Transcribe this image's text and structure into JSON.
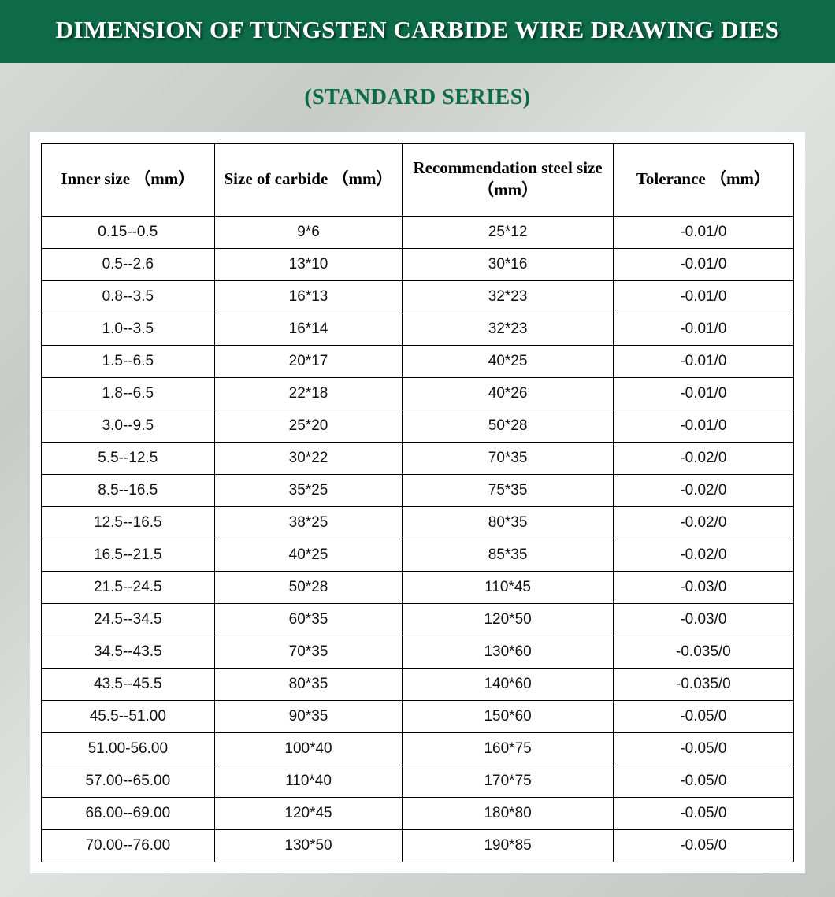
{
  "header": {
    "title": "DIMENSION OF TUNGSTEN CARBIDE WIRE DRAWING DIES",
    "subtitle": "(STANDARD SERIES)",
    "bar_color": "#0d6b49",
    "title_color": "#ffffff",
    "subtitle_color": "#0d6b49",
    "title_fontsize": 31,
    "subtitle_fontsize": 28
  },
  "table": {
    "type": "table",
    "background_color": "#ffffff",
    "border_color": "#000000",
    "header_font": "Georgia serif",
    "header_fontsize": 21,
    "header_fontweight": "bold",
    "body_font": "Arial sans-serif",
    "body_fontsize": 19,
    "column_widths_pct": [
      23,
      25,
      28,
      24
    ],
    "columns": [
      "Inner size （mm）",
      "Size of carbide （mm）",
      "Recommendation steel size （mm）",
      "Tolerance （mm）"
    ],
    "rows": [
      [
        "0.15--0.5",
        "9*6",
        "25*12",
        "-0.01/0"
      ],
      [
        "0.5--2.6",
        "13*10",
        "30*16",
        "-0.01/0"
      ],
      [
        "0.8--3.5",
        "16*13",
        "32*23",
        "-0.01/0"
      ],
      [
        "1.0--3.5",
        "16*14",
        "32*23",
        "-0.01/0"
      ],
      [
        "1.5--6.5",
        "20*17",
        "40*25",
        "-0.01/0"
      ],
      [
        "1.8--6.5",
        "22*18",
        "40*26",
        "-0.01/0"
      ],
      [
        "3.0--9.5",
        "25*20",
        "50*28",
        "-0.01/0"
      ],
      [
        "5.5--12.5",
        "30*22",
        "70*35",
        "-0.02/0"
      ],
      [
        "8.5--16.5",
        "35*25",
        "75*35",
        "-0.02/0"
      ],
      [
        "12.5--16.5",
        "38*25",
        "80*35",
        "-0.02/0"
      ],
      [
        "16.5--21.5",
        "40*25",
        "85*35",
        "-0.02/0"
      ],
      [
        "21.5--24.5",
        "50*28",
        "110*45",
        "-0.03/0"
      ],
      [
        "24.5--34.5",
        "60*35",
        "120*50",
        "-0.03/0"
      ],
      [
        "34.5--43.5",
        "70*35",
        "130*60",
        "-0.035/0"
      ],
      [
        "43.5--45.5",
        "80*35",
        "140*60",
        "-0.035/0"
      ],
      [
        "45.5--51.00",
        "90*35",
        "150*60",
        "-0.05/0"
      ],
      [
        "51.00-56.00",
        "100*40",
        "160*75",
        "-0.05/0"
      ],
      [
        "57.00--65.00",
        "110*40",
        "170*75",
        "-0.05/0"
      ],
      [
        "66.00--69.00",
        "120*45",
        "180*80",
        "-0.05/0"
      ],
      [
        "70.00--76.00",
        "130*50",
        "190*85",
        "-0.05/0"
      ]
    ]
  }
}
